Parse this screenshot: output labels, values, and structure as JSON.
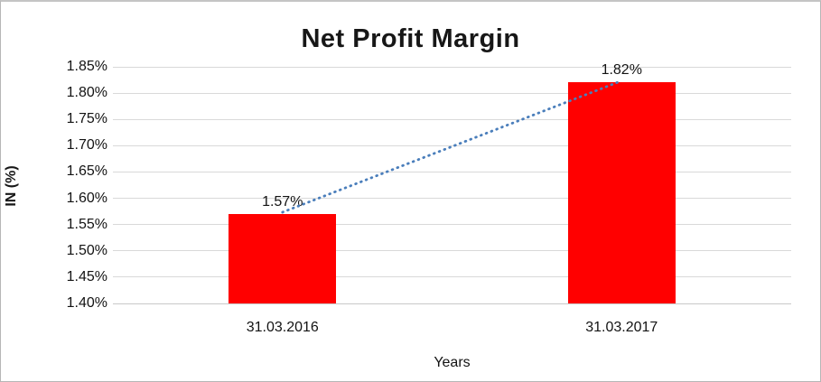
{
  "chart_data": {
    "type": "bar",
    "title": "Net Profit Margin",
    "xlabel": "Years",
    "ylabel": "IN (%)",
    "categories": [
      "31.03.2016",
      "31.03.2017"
    ],
    "values": [
      1.57,
      1.82
    ],
    "data_labels": [
      "1.57%",
      "1.82%"
    ],
    "y_ticks": [
      "1.85%",
      "1.80%",
      "1.75%",
      "1.70%",
      "1.65%",
      "1.60%",
      "1.55%",
      "1.50%",
      "1.45%",
      "1.40%"
    ],
    "ylim": [
      1.4,
      1.85
    ],
    "grid": true,
    "legend": "none",
    "bar_color": "#ff0000",
    "trendline": {
      "style": "dotted",
      "color": "#4a7ebb",
      "from_value": 1.57,
      "to_value": 1.82
    },
    "gridline_color": "#d9d9d9",
    "text_color": "#131313",
    "background_color": "#ffffff"
  }
}
